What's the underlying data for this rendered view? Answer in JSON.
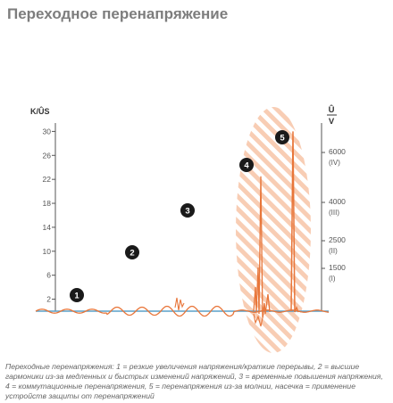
{
  "page": {
    "title": "Переходное перенапряжение",
    "caption": "Переходные перенапряжения: 1 = резкие увеличения напряжения/краткие перерывы, 2 = высшие гармоники из-за медленных и быстрых изменений напряжений, 3 = временные повышения напряжения, 4 = коммутационные перенапряжения, 5 = перенапряжения из-за молнии, насечка = применение устройств защиты от перенапряжений"
  },
  "colors": {
    "signal": "#e8763a",
    "baseline": "#5aa0c8",
    "hatch": "#f2a477",
    "axis": "#555555",
    "text": "#555555",
    "marker": "#1a1a1a"
  },
  "chart_data": {
    "type": "line",
    "title": "",
    "left_axis": {
      "label": "K/ÛS",
      "ticks": [
        2,
        6,
        10,
        14,
        18,
        22,
        26,
        30
      ],
      "tick_labels": [
        "2",
        "6",
        "10",
        "14",
        "18",
        "22",
        "26",
        "30"
      ]
    },
    "right_axis": {
      "label_top": "Û",
      "label_bottom": "V",
      "ticks": [
        {
          "value": "1500",
          "class": "(I)"
        },
        {
          "value": "2500",
          "class": "(II)"
        },
        {
          "value": "4000",
          "class": "(III)"
        },
        {
          "value": "6000",
          "class": "(IV)"
        }
      ]
    },
    "markers": [
      {
        "label": "1",
        "meaning": "резкие увеличения напряжения/краткие перерывы"
      },
      {
        "label": "2",
        "meaning": "высшие гармоники из-за медленных и быстрых изменений напряжений"
      },
      {
        "label": "3",
        "meaning": "временные повышения напряжения"
      },
      {
        "label": "4",
        "meaning": "коммутационные перенапряжения"
      },
      {
        "label": "5",
        "meaning": "перенапряжения из-за молнии"
      }
    ],
    "spikes": [
      {
        "segment": "4",
        "peak_k": 22.5
      },
      {
        "segment": "5",
        "peak_k": 30
      }
    ],
    "protection_zone": "насечка"
  }
}
